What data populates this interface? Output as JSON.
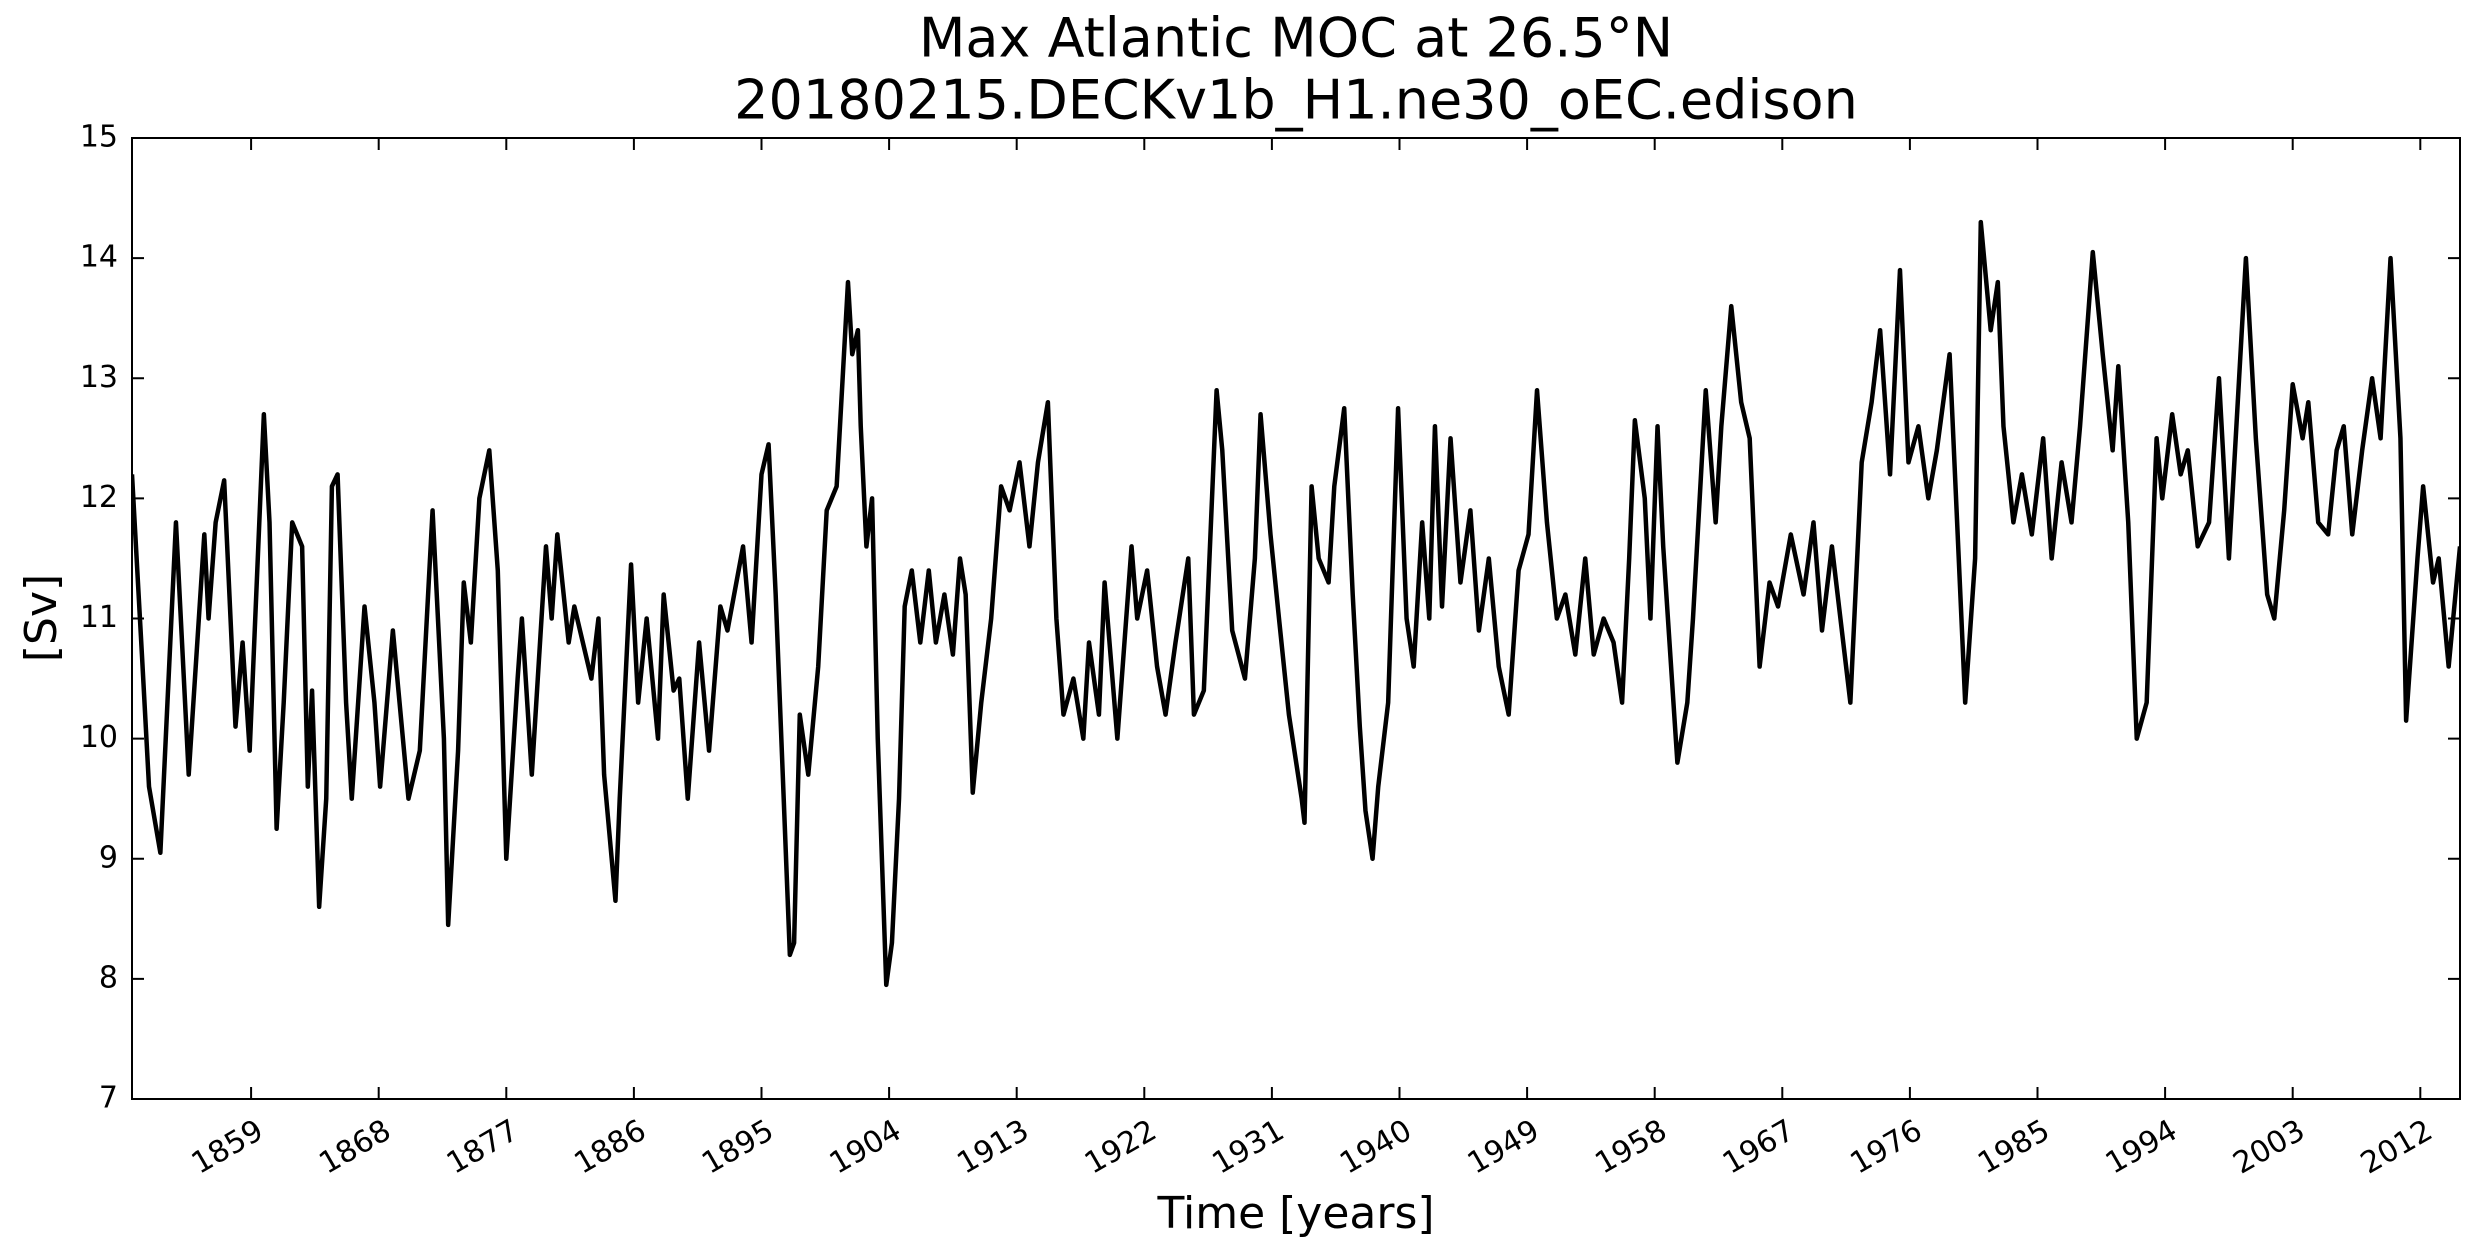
{
  "chart_data": {
    "type": "line",
    "title": "Max Atlantic MOC at 26.5°N",
    "subtitle": "20180215.DECKv1b_H1.ne30_oEC.edison",
    "x_label": "Time [years]",
    "y_label": "[Sv]",
    "xlim": [
      1850.6,
      2014.8
    ],
    "ylim": [
      7,
      15
    ],
    "xticks": [
      1859,
      1868,
      1877,
      1886,
      1895,
      1904,
      1913,
      1922,
      1931,
      1940,
      1949,
      1958,
      1967,
      1976,
      1985,
      1994,
      2003,
      2012
    ],
    "yticks": [
      7,
      8,
      9,
      10,
      11,
      12,
      13,
      14,
      15
    ],
    "grid": false,
    "x": [
      1850.6,
      1851.3,
      1851.8,
      1852.6,
      1853.7,
      1854.6,
      1855.7,
      1856.0,
      1856.5,
      1857.1,
      1857.9,
      1858.4,
      1858.9,
      1859.9,
      1860.3,
      1860.8,
      1861.3,
      1861.9,
      1862.6,
      1863.0,
      1863.3,
      1863.8,
      1864.3,
      1864.7,
      1865.1,
      1865.7,
      1866.1,
      1867.0,
      1867.7,
      1868.1,
      1869.0,
      1870.1,
      1870.9,
      1871.8,
      1872.6,
      1872.9,
      1873.6,
      1874.0,
      1874.5,
      1875.1,
      1875.8,
      1876.4,
      1877.0,
      1877.8,
      1878.1,
      1878.8,
      1879.8,
      1880.2,
      1880.6,
      1881.4,
      1881.8,
      1883.0,
      1883.5,
      1883.9,
      1884.7,
      1885.0,
      1885.8,
      1886.3,
      1886.9,
      1887.7,
      1888.1,
      1888.8,
      1889.2,
      1889.8,
      1890.6,
      1891.3,
      1892.1,
      1892.6,
      1893.7,
      1894.3,
      1895.0,
      1895.5,
      1896.0,
      1896.4,
      1897.0,
      1897.3,
      1897.7,
      1898.3,
      1899.0,
      1899.6,
      1900.3,
      1901.1,
      1901.4,
      1901.8,
      1902.0,
      1902.4,
      1902.8,
      1903.2,
      1903.8,
      1904.2,
      1904.7,
      1905.1,
      1905.6,
      1906.2,
      1906.8,
      1907.3,
      1907.9,
      1908.5,
      1909.0,
      1909.4,
      1909.9,
      1910.5,
      1911.2,
      1911.9,
      1912.5,
      1913.2,
      1913.9,
      1914.5,
      1915.2,
      1915.8,
      1916.3,
      1917.0,
      1917.7,
      1918.1,
      1918.8,
      1919.2,
      1920.1,
      1921.1,
      1921.5,
      1922.2,
      1922.9,
      1923.5,
      1924.2,
      1925.1,
      1925.5,
      1926.2,
      1927.1,
      1927.5,
      1928.2,
      1929.1,
      1929.8,
      1930.2,
      1930.9,
      1931.5,
      1932.2,
      1933.1,
      1933.3,
      1933.8,
      1934.3,
      1935.0,
      1935.4,
      1936.1,
      1936.7,
      1937.2,
      1937.6,
      1938.1,
      1938.5,
      1939.2,
      1939.9,
      1940.5,
      1941.0,
      1941.6,
      1942.1,
      1942.5,
      1943.0,
      1943.6,
      1944.3,
      1945.0,
      1945.6,
      1946.3,
      1947.0,
      1947.7,
      1948.4,
      1949.1,
      1949.7,
      1950.4,
      1951.1,
      1951.7,
      1952.4,
      1953.1,
      1953.7,
      1954.4,
      1955.1,
      1955.7,
      1956.2,
      1956.6,
      1957.3,
      1957.7,
      1958.2,
      1958.6,
      1959.6,
      1960.3,
      1960.7,
      1961.6,
      1962.3,
      1962.7,
      1963.4,
      1964.1,
      1964.7,
      1965.4,
      1966.1,
      1966.7,
      1967.6,
      1968.5,
      1969.2,
      1969.8,
      1970.5,
      1971.8,
      1972.6,
      1973.3,
      1973.9,
      1974.6,
      1975.3,
      1975.9,
      1976.6,
      1977.3,
      1977.9,
      1978.8,
      1979.9,
      1980.6,
      1981.0,
      1981.7,
      1982.2,
      1982.6,
      1983.3,
      1983.9,
      1984.6,
      1985.4,
      1986.0,
      1986.7,
      1987.4,
      1988.0,
      1988.9,
      1989.6,
      1990.3,
      1990.7,
      1991.4,
      1992.0,
      1992.7,
      1993.4,
      1993.8,
      1994.5,
      1995.1,
      1995.6,
      1996.3,
      1997.1,
      1997.8,
      1998.5,
      1999.7,
      2000.4,
      2001.2,
      2001.7,
      2002.4,
      2003.0,
      2003.7,
      2004.1,
      2004.8,
      2005.5,
      2006.1,
      2006.6,
      2007.2,
      2007.9,
      2008.6,
      2009.2,
      2009.9,
      2010.6,
      2011.0,
      2011.8,
      2012.2,
      2012.9,
      2013.3,
      2014.0,
      2014.8
    ],
    "series": [
      {
        "name": "MOC",
        "color": "#000000",
        "values": [
          12.2,
          10.7,
          9.6,
          9.05,
          11.8,
          9.7,
          11.7,
          11.0,
          11.8,
          12.15,
          10.1,
          10.8,
          9.9,
          12.7,
          11.8,
          9.25,
          10.3,
          11.8,
          11.6,
          9.6,
          10.4,
          8.6,
          9.5,
          12.1,
          12.2,
          10.3,
          9.5,
          11.1,
          10.3,
          9.6,
          10.9,
          9.5,
          9.9,
          11.9,
          10.0,
          8.45,
          9.9,
          11.3,
          10.8,
          12.0,
          12.4,
          11.4,
          9.0,
          10.5,
          11.0,
          9.7,
          11.6,
          11.0,
          11.7,
          10.8,
          11.1,
          10.5,
          11.0,
          9.7,
          8.65,
          9.5,
          11.45,
          10.3,
          11.0,
          10.0,
          11.2,
          10.4,
          10.5,
          9.5,
          10.8,
          9.9,
          11.1,
          10.9,
          11.6,
          10.8,
          12.2,
          12.45,
          11.2,
          10.0,
          8.2,
          8.3,
          10.2,
          9.7,
          10.6,
          11.9,
          12.1,
          13.8,
          13.2,
          13.4,
          12.6,
          11.6,
          12.0,
          10.0,
          7.95,
          8.3,
          9.5,
          11.1,
          11.4,
          10.8,
          11.4,
          10.8,
          11.2,
          10.7,
          11.5,
          11.2,
          9.55,
          10.3,
          11.0,
          12.1,
          11.9,
          12.3,
          11.6,
          12.3,
          12.8,
          11.0,
          10.2,
          10.5,
          10.0,
          10.8,
          10.2,
          11.3,
          10.0,
          11.6,
          11.0,
          11.4,
          10.6,
          10.2,
          10.8,
          11.5,
          10.2,
          10.4,
          12.9,
          12.4,
          10.9,
          10.5,
          11.5,
          12.7,
          11.7,
          11.0,
          10.2,
          9.5,
          9.3,
          12.1,
          11.5,
          11.3,
          12.1,
          12.75,
          11.2,
          10.1,
          9.4,
          9.0,
          9.6,
          10.3,
          12.75,
          11.0,
          10.6,
          11.8,
          11.0,
          12.6,
          11.1,
          12.5,
          11.3,
          11.9,
          10.9,
          11.5,
          10.6,
          10.2,
          11.4,
          11.7,
          12.9,
          11.8,
          11.0,
          11.2,
          10.7,
          11.5,
          10.7,
          11.0,
          10.8,
          10.3,
          11.5,
          12.65,
          12.0,
          11.0,
          12.6,
          11.6,
          9.8,
          10.3,
          11.0,
          12.9,
          11.8,
          12.6,
          13.6,
          12.8,
          12.5,
          10.6,
          11.3,
          11.1,
          11.7,
          11.2,
          11.8,
          10.9,
          11.6,
          10.3,
          12.3,
          12.8,
          13.4,
          12.2,
          13.9,
          12.3,
          12.6,
          12.0,
          12.4,
          13.2,
          10.3,
          11.5,
          14.3,
          13.4,
          13.8,
          12.6,
          11.8,
          12.2,
          11.7,
          12.5,
          11.5,
          12.3,
          11.8,
          12.6,
          14.05,
          13.2,
          12.4,
          13.1,
          11.8,
          10.0,
          10.3,
          12.5,
          12.0,
          12.7,
          12.2,
          12.4,
          11.6,
          11.8,
          13.0,
          11.5,
          14.0,
          12.5,
          11.2,
          11.0,
          11.9,
          12.95,
          12.5,
          12.8,
          11.8,
          11.7,
          12.4,
          12.6,
          11.7,
          12.4,
          13.0,
          12.5,
          14.0,
          12.5,
          10.15,
          11.5,
          12.1,
          11.3,
          11.5,
          10.6,
          11.6
        ]
      }
    ]
  }
}
